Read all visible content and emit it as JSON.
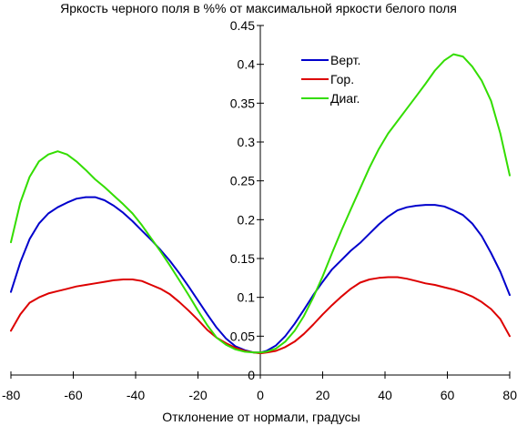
{
  "chart_data": {
    "type": "line",
    "title": "Яркость черного поля в %% от максимальной яркости белого поля",
    "xlabel": "Отклонение от нормали, градусы",
    "ylabel": "",
    "xlim": [
      -80,
      80
    ],
    "ylim": [
      0,
      0.45
    ],
    "x_ticks": [
      "-80",
      "-60",
      "-40",
      "-20",
      "0",
      "20",
      "40",
      "60",
      "80"
    ],
    "y_ticks": [
      "0",
      "0.05",
      "0.1",
      "0.15",
      "0.2",
      "0.25",
      "0.3",
      "0.35",
      "0.4",
      "0.45"
    ],
    "grid": false,
    "legend_position": "top-right",
    "series": [
      {
        "name": "Верт.",
        "color": "#0000cc",
        "x": [
          -80,
          -77,
          -74,
          -71,
          -68,
          -65,
          -62,
          -59,
          -56,
          -53,
          -50,
          -47,
          -44,
          -41,
          -38,
          -35,
          -32,
          -29,
          -26,
          -23,
          -20,
          -17,
          -14,
          -11,
          -8,
          -5,
          -2,
          0,
          2,
          5,
          8,
          11,
          14,
          17,
          20,
          23,
          26,
          29,
          32,
          35,
          38,
          41,
          44,
          47,
          50,
          53,
          56,
          59,
          62,
          65,
          68,
          71,
          74,
          77,
          80
        ],
        "y": [
          0.107,
          0.145,
          0.175,
          0.195,
          0.208,
          0.216,
          0.222,
          0.227,
          0.229,
          0.229,
          0.225,
          0.218,
          0.209,
          0.198,
          0.186,
          0.174,
          0.161,
          0.147,
          0.131,
          0.114,
          0.096,
          0.078,
          0.061,
          0.047,
          0.037,
          0.032,
          0.029,
          0.029,
          0.031,
          0.038,
          0.05,
          0.066,
          0.084,
          0.103,
          0.12,
          0.136,
          0.148,
          0.16,
          0.17,
          0.182,
          0.194,
          0.204,
          0.212,
          0.216,
          0.218,
          0.219,
          0.219,
          0.217,
          0.212,
          0.206,
          0.195,
          0.179,
          0.157,
          0.133,
          0.103
        ]
      },
      {
        "name": "Гор.",
        "color": "#dd0000",
        "x": [
          -80,
          -77,
          -74,
          -71,
          -68,
          -65,
          -62,
          -59,
          -56,
          -53,
          -50,
          -47,
          -44,
          -41,
          -38,
          -35,
          -32,
          -29,
          -26,
          -23,
          -20,
          -17,
          -14,
          -11,
          -8,
          -5,
          -2,
          0,
          2,
          5,
          8,
          11,
          14,
          17,
          20,
          23,
          26,
          29,
          32,
          35,
          38,
          41,
          44,
          47,
          50,
          53,
          56,
          59,
          62,
          65,
          68,
          71,
          74,
          77,
          80
        ],
        "y": [
          0.057,
          0.078,
          0.093,
          0.1,
          0.105,
          0.108,
          0.111,
          0.114,
          0.116,
          0.118,
          0.12,
          0.122,
          0.123,
          0.123,
          0.121,
          0.116,
          0.111,
          0.104,
          0.094,
          0.083,
          0.071,
          0.058,
          0.048,
          0.041,
          0.035,
          0.031,
          0.029,
          0.028,
          0.029,
          0.031,
          0.036,
          0.043,
          0.053,
          0.065,
          0.078,
          0.09,
          0.101,
          0.111,
          0.119,
          0.123,
          0.125,
          0.126,
          0.126,
          0.124,
          0.121,
          0.118,
          0.116,
          0.113,
          0.11,
          0.106,
          0.101,
          0.094,
          0.085,
          0.072,
          0.05
        ]
      },
      {
        "name": "Диаг.",
        "color": "#33dd00",
        "x": [
          -80,
          -77,
          -74,
          -71,
          -68,
          -65,
          -62,
          -59,
          -56,
          -53,
          -50,
          -47,
          -44,
          -41,
          -38,
          -35,
          -32,
          -29,
          -26,
          -23,
          -20,
          -17,
          -14,
          -11,
          -8,
          -5,
          -2,
          0,
          2,
          5,
          8,
          11,
          14,
          17,
          20,
          23,
          26,
          29,
          32,
          35,
          38,
          41,
          44,
          47,
          50,
          53,
          56,
          59,
          62,
          65,
          68,
          71,
          74,
          77,
          80
        ],
        "y": [
          0.171,
          0.222,
          0.255,
          0.275,
          0.284,
          0.288,
          0.284,
          0.275,
          0.264,
          0.252,
          0.242,
          0.231,
          0.22,
          0.208,
          0.193,
          0.176,
          0.159,
          0.141,
          0.122,
          0.103,
          0.083,
          0.064,
          0.048,
          0.039,
          0.033,
          0.03,
          0.029,
          0.029,
          0.03,
          0.034,
          0.043,
          0.057,
          0.076,
          0.1,
          0.127,
          0.157,
          0.186,
          0.213,
          0.24,
          0.267,
          0.291,
          0.311,
          0.327,
          0.343,
          0.359,
          0.375,
          0.392,
          0.405,
          0.413,
          0.41,
          0.397,
          0.379,
          0.353,
          0.311,
          0.257
        ]
      }
    ]
  }
}
